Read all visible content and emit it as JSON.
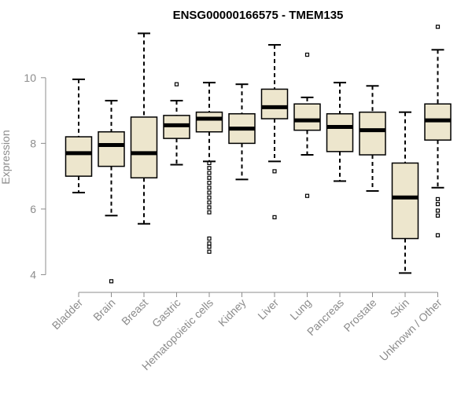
{
  "chart_data": {
    "type": "boxplot",
    "title": "ENSG00000166575 - TMEM135",
    "ylabel": "Expression",
    "xlabel": "",
    "ylim": [
      3.7,
      11.6
    ],
    "yticks": [
      4,
      6,
      8,
      10
    ],
    "box_color": "#ede6cd",
    "categories": [
      "Bladder",
      "Brain",
      "Breast",
      "Gastric",
      "Hematopoietic cells",
      "Kidney",
      "Liver",
      "Lung",
      "Pancreas",
      "Prostate",
      "Skin",
      "Unknown / Other"
    ],
    "boxes": [
      {
        "whisker_low": 6.5,
        "q1": 7.0,
        "median": 7.7,
        "q3": 8.2,
        "whisker_high": 9.95,
        "outliers": []
      },
      {
        "whisker_low": 5.8,
        "q1": 7.3,
        "median": 7.95,
        "q3": 8.35,
        "whisker_high": 9.3,
        "outliers": [
          3.8
        ]
      },
      {
        "whisker_low": 5.55,
        "q1": 6.95,
        "median": 7.7,
        "q3": 8.8,
        "whisker_high": 11.35,
        "outliers": []
      },
      {
        "whisker_low": 7.35,
        "q1": 8.15,
        "median": 8.55,
        "q3": 8.85,
        "whisker_high": 9.3,
        "outliers": [
          9.8
        ]
      },
      {
        "whisker_low": 7.45,
        "q1": 8.35,
        "median": 8.75,
        "q3": 8.95,
        "whisker_high": 9.85,
        "outliers": [
          7.4,
          7.25,
          7.1,
          6.95,
          6.8,
          6.65,
          6.5,
          6.35,
          6.2,
          6.05,
          5.9,
          5.1,
          4.95,
          4.85,
          4.7
        ]
      },
      {
        "whisker_low": 6.9,
        "q1": 8.0,
        "median": 8.45,
        "q3": 8.9,
        "whisker_high": 9.8,
        "outliers": []
      },
      {
        "whisker_low": 7.45,
        "q1": 8.75,
        "median": 9.1,
        "q3": 9.65,
        "whisker_high": 11.0,
        "outliers": [
          7.15,
          5.75
        ]
      },
      {
        "whisker_low": 7.65,
        "q1": 8.4,
        "median": 8.7,
        "q3": 9.2,
        "whisker_high": 9.4,
        "outliers": [
          10.7,
          6.4
        ]
      },
      {
        "whisker_low": 6.85,
        "q1": 7.75,
        "median": 8.5,
        "q3": 8.9,
        "whisker_high": 9.85,
        "outliers": []
      },
      {
        "whisker_low": 6.55,
        "q1": 7.65,
        "median": 8.4,
        "q3": 8.95,
        "whisker_high": 9.75,
        "outliers": []
      },
      {
        "whisker_low": 4.05,
        "q1": 5.1,
        "median": 6.35,
        "q3": 7.4,
        "whisker_high": 8.95,
        "outliers": []
      },
      {
        "whisker_low": 6.65,
        "q1": 8.1,
        "median": 8.7,
        "q3": 9.2,
        "whisker_high": 10.85,
        "outliers": [
          11.55,
          6.3,
          6.15,
          5.95,
          5.8,
          5.2
        ]
      }
    ]
  }
}
